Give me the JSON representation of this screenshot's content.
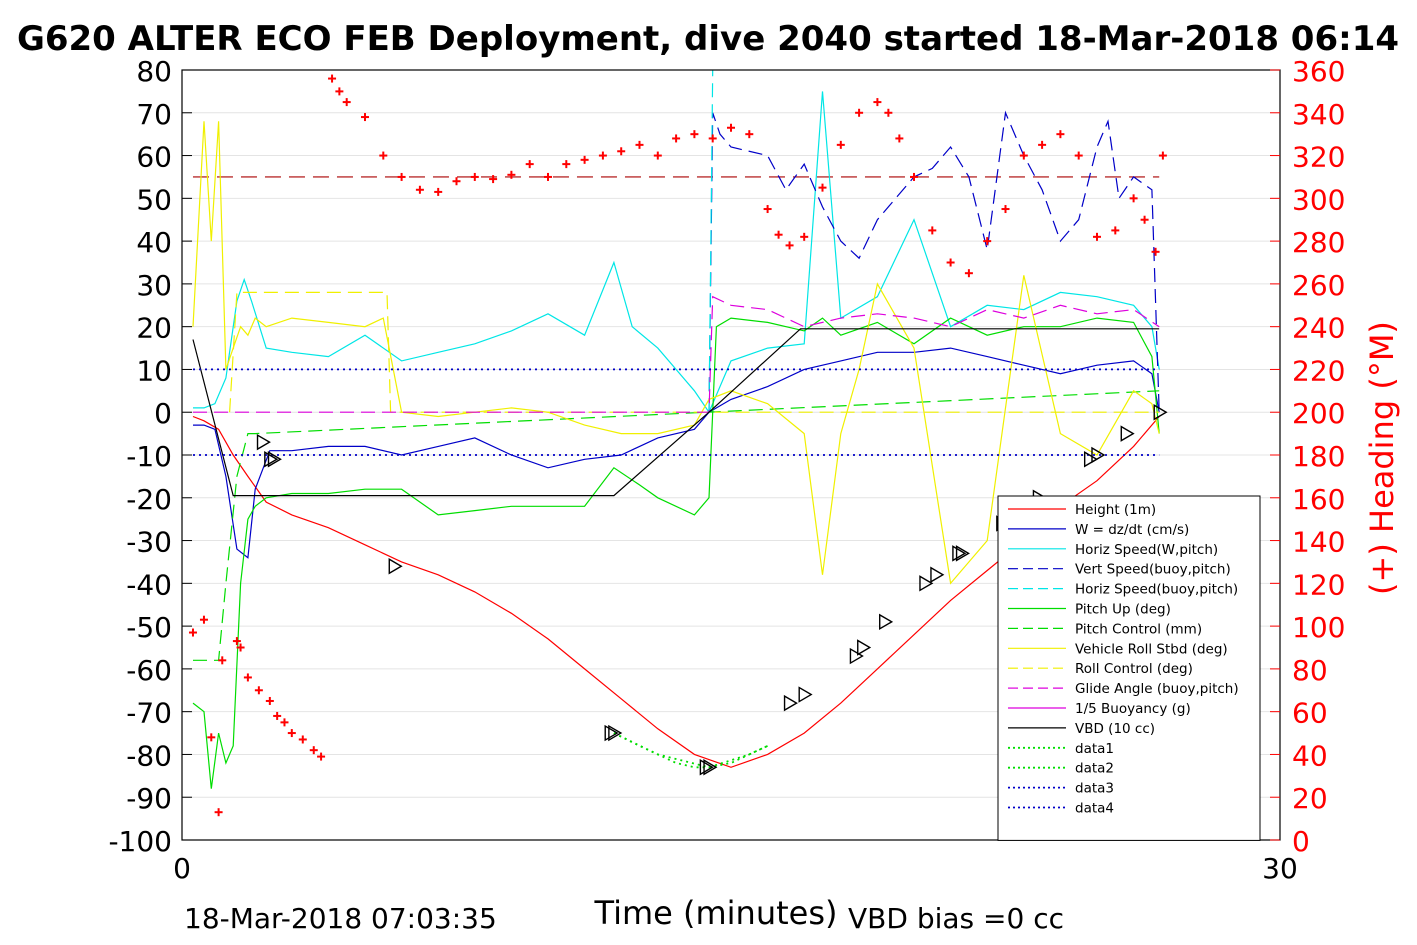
{
  "chart_data": {
    "type": "line",
    "title": "G620 ALTER ECO FEB Deployment, dive 2040 started 18-Mar-2018 06:14",
    "xlabel": "Time (minutes)",
    "ylabel_right": "(+) Heading (°M)",
    "xlim": [
      0,
      30
    ],
    "ylim": [
      -100,
      80
    ],
    "ylim_right": [
      0,
      360
    ],
    "x_ticks": [
      "0",
      "30"
    ],
    "y_ticks": [
      "-100",
      "-90",
      "-80",
      "-70",
      "-60",
      "-50",
      "-40",
      "-30",
      "-20",
      "-10",
      "0",
      "10",
      "20",
      "30",
      "40",
      "50",
      "60",
      "70",
      "80"
    ],
    "y_ticks_right": [
      "0",
      "20",
      "40",
      "60",
      "80",
      "100",
      "120",
      "140",
      "160",
      "180",
      "200",
      "220",
      "240",
      "260",
      "280",
      "300",
      "320",
      "340",
      "360"
    ],
    "grid": "horizontal",
    "legend_position": "bottom-right",
    "footer_left": "18-Mar-2018 07:03:35",
    "footer_right": "VBD bias =0 cc",
    "colors": {
      "height": "#ff0000",
      "w": "#0000c8",
      "horiz_speed": "#00e6e6",
      "pitch": "#00dd00",
      "roll": "#f0f000",
      "glide": "#dd00dd",
      "vbd": "#000000",
      "heading": "#ff0000"
    },
    "series": [
      {
        "name": "Height (1m)",
        "style": "solid",
        "color": "#ff0000",
        "x": [
          0.3,
          0.6,
          1.0,
          1.4,
          1.8,
          2.3,
          3,
          4,
          5,
          6,
          7,
          8,
          9,
          10,
          11,
          12,
          13,
          14,
          15,
          16,
          17,
          18,
          19,
          20,
          21,
          22,
          23,
          24,
          25,
          26,
          26.7
        ],
        "y": [
          -1,
          -2,
          -4,
          -10,
          -15,
          -21,
          -24,
          -27,
          -31,
          -35,
          -38,
          -42,
          -47,
          -53,
          -60,
          -67,
          -74,
          -80,
          -83,
          -80,
          -75,
          -68,
          -60,
          -52,
          -44,
          -37,
          -30,
          -22,
          -16,
          -8,
          -1
        ]
      },
      {
        "name": "W = dz/dt (cm/s)",
        "style": "solid",
        "color": "#0000c8",
        "x": [
          0.3,
          0.6,
          0.9,
          1.2,
          1.5,
          1.8,
          2.0,
          2.4,
          3,
          4,
          5,
          6,
          7,
          8,
          9,
          10,
          11,
          12,
          13,
          14,
          14.4,
          15,
          16,
          17,
          18,
          19,
          20,
          21,
          22,
          23,
          24,
          25,
          26,
          26.5,
          26.7
        ],
        "y": [
          -3,
          -3,
          -4,
          -15,
          -32,
          -34,
          -18,
          -9,
          -9,
          -8,
          -8,
          -10,
          -8,
          -6,
          -10,
          -13,
          -11,
          -10,
          -6,
          -4,
          0,
          3,
          6,
          10,
          12,
          14,
          14,
          15,
          13,
          11,
          9,
          11,
          12,
          9,
          0
        ]
      },
      {
        "name": "Horiz Speed(W,pitch)",
        "style": "solid",
        "color": "#00e6e6",
        "x": [
          0.3,
          0.6,
          0.9,
          1.2,
          1.5,
          1.7,
          1.9,
          2.3,
          3,
          4,
          5,
          6,
          7,
          8,
          9,
          10,
          11,
          11.8,
          12.3,
          13,
          14,
          14.4,
          15,
          16,
          17,
          17.5,
          18,
          19,
          20,
          21,
          22,
          23,
          24,
          25,
          26,
          26.5,
          26.7
        ],
        "y": [
          1,
          1,
          2,
          8,
          26,
          31,
          26,
          15,
          14,
          13,
          18,
          12,
          14,
          16,
          19,
          23,
          18,
          35,
          20,
          15,
          5,
          0,
          12,
          15,
          16,
          75,
          22,
          27,
          45,
          20,
          25,
          24,
          28,
          27,
          25,
          20,
          10
        ]
      },
      {
        "name": "Vert Speed(buoy,pitch)",
        "style": "dashed",
        "color": "#0000c8",
        "x": [
          14.4,
          14.5,
          14.7,
          15,
          16,
          16.5,
          17,
          17.5,
          18,
          18.5,
          19,
          19.5,
          20,
          20.5,
          21,
          21.5,
          22,
          22.5,
          23,
          23.5,
          24,
          24.5,
          25,
          25.3,
          25.6,
          26,
          26.5,
          26.7
        ],
        "y": [
          0,
          70,
          65,
          62,
          60,
          52,
          58,
          48,
          40,
          36,
          45,
          50,
          55,
          57,
          62,
          55,
          38,
          70,
          60,
          52,
          40,
          45,
          62,
          68,
          50,
          55,
          52,
          0
        ]
      },
      {
        "name": "Horiz Speed(buoy,pitch)",
        "style": "dashed",
        "color": "#00e6e6",
        "x": [
          14.4,
          14.5
        ],
        "y": [
          0,
          80
        ]
      },
      {
        "name": "Pitch Up (deg)",
        "style": "solid",
        "color": "#00dd00",
        "x": [
          0.3,
          0.6,
          0.8,
          1.0,
          1.2,
          1.4,
          1.6,
          1.8,
          2.0,
          2.3,
          3,
          4,
          5,
          6,
          7,
          8,
          9,
          10,
          11,
          11.8,
          12.5,
          13,
          14,
          14.4,
          14.6,
          15,
          16,
          17,
          17.5,
          18,
          19,
          20,
          21,
          22,
          23,
          24,
          25,
          26,
          26.5,
          26.7
        ],
        "y": [
          -68,
          -70,
          -88,
          -75,
          -82,
          -78,
          -40,
          -25,
          -22,
          -20,
          -19,
          -19,
          -18,
          -18,
          -24,
          -23,
          -22,
          -22,
          -22,
          -13,
          -17,
          -20,
          -24,
          -20,
          20,
          22,
          21,
          19,
          22,
          18,
          21,
          16,
          22,
          18,
          20,
          20,
          22,
          21,
          13,
          -5
        ]
      },
      {
        "name": "Pitch Control (mm)",
        "style": "dashed",
        "color": "#00dd00",
        "x": [
          0.3,
          1.0,
          1.2,
          1.5,
          1.8,
          2.0,
          26.7
        ],
        "y": [
          -58,
          -58,
          -40,
          -15,
          -5,
          -5,
          5
        ]
      },
      {
        "name": "Vehicle Roll Stbd (deg)",
        "style": "solid",
        "color": "#f0f000",
        "x": [
          0.3,
          0.6,
          0.8,
          1.0,
          1.2,
          1.4,
          1.6,
          1.8,
          2.0,
          2.3,
          3,
          4,
          5,
          5.5,
          6,
          7,
          8,
          9,
          10,
          11,
          12,
          13,
          14,
          14.4,
          15,
          16,
          17,
          17.5,
          18,
          18.5,
          19,
          20,
          21,
          22,
          23,
          24,
          25,
          26,
          26.5,
          26.7
        ],
        "y": [
          20,
          68,
          40,
          68,
          10,
          15,
          20,
          18,
          22,
          20,
          22,
          21,
          20,
          22,
          0,
          -1,
          0,
          1,
          0,
          -3,
          -5,
          -5,
          -3,
          3,
          5,
          2,
          -5,
          -38,
          -5,
          10,
          30,
          15,
          -40,
          -30,
          32,
          -5,
          -10,
          5,
          2,
          -5
        ]
      },
      {
        "name": "Roll Control (deg)",
        "style": "dashed",
        "color": "#f0f000",
        "x": [
          1.3,
          1.5,
          5.6,
          5.7,
          26.7
        ],
        "y": [
          0,
          28,
          28,
          0,
          0
        ]
      },
      {
        "name": "Glide Angle (buoy,pitch)",
        "style": "dashed",
        "color": "#dd00dd",
        "x": [
          0.3,
          14.4,
          14.5,
          15,
          16,
          17,
          18,
          19,
          20,
          21,
          22,
          23,
          24,
          25,
          26,
          26.7
        ],
        "y": [
          0,
          0,
          27,
          25,
          24,
          20,
          22,
          23,
          22,
          20,
          24,
          22,
          25,
          23,
          24,
          20
        ]
      },
      {
        "name": "1/5 Buoyancy (g)",
        "style": "solid",
        "color": "#dd00dd",
        "x": [],
        "y": []
      },
      {
        "name": "VBD (10 cc)",
        "style": "solid",
        "color": "#000000",
        "x": [
          0.3,
          1.4,
          11.8,
          14.4,
          16.9,
          26.7
        ],
        "y": [
          17,
          -19.5,
          -19.5,
          0,
          19.5,
          19.5
        ]
      },
      {
        "name": "data1",
        "style": "dotted",
        "color": "#00dd00",
        "x": [
          11.8,
          12.5,
          13,
          13.5,
          14,
          14.4,
          15,
          15.5,
          16
        ],
        "y": [
          -75,
          -78,
          -80,
          -82,
          -83,
          -83,
          -82,
          -80,
          -78
        ]
      },
      {
        "name": "data2",
        "style": "dotted",
        "color": "#00dd00",
        "x": [
          11.8,
          13,
          14.4,
          15.5,
          16
        ],
        "y": [
          -75,
          -80,
          -83,
          -80,
          -78
        ]
      },
      {
        "name": "data3",
        "style": "dotted",
        "color": "#0000c8",
        "x": [
          0.3,
          26.7
        ],
        "y": [
          10,
          10
        ]
      },
      {
        "name": "data4",
        "style": "dotted",
        "color": "#0000c8",
        "x": [
          0.3,
          26.7
        ],
        "y": [
          -10,
          -10
        ]
      }
    ],
    "reference_lines": [
      {
        "y": 55,
        "style": "dashed",
        "color": "#aa0000"
      }
    ],
    "heading_points": {
      "name": "(+) Heading (°M)",
      "x": [
        0.3,
        0.6,
        0.8,
        1.0,
        1.1,
        1.5,
        1.6,
        1.8,
        2.1,
        2.4,
        2.6,
        2.8,
        3.0,
        3.3,
        3.6,
        3.8,
        4.1,
        4.3,
        4.5,
        5.0,
        5.5,
        6.0,
        6.5,
        7.0,
        7.5,
        8.0,
        8.5,
        9.0,
        9.5,
        10.0,
        10.5,
        11.0,
        11.5,
        12.0,
        12.5,
        13.0,
        13.5,
        14.0,
        14.5,
        15.0,
        15.5,
        16.0,
        16.3,
        16.6,
        17.0,
        17.5,
        18.0,
        18.5,
        19.0,
        19.3,
        19.6,
        20.0,
        20.5,
        21.0,
        21.5,
        22.0,
        22.5,
        23.0,
        23.5,
        24.0,
        24.5,
        25.0,
        25.5,
        26.0,
        26.3,
        26.6,
        26.8
      ],
      "y": [
        97,
        103,
        48,
        13,
        84,
        93,
        90,
        76,
        70,
        65,
        58,
        55,
        50,
        47,
        42,
        39,
        356,
        350,
        345,
        338,
        320,
        310,
        304,
        303,
        308,
        310,
        309,
        311,
        316,
        310,
        316,
        318,
        320,
        322,
        325,
        320,
        328,
        330,
        328,
        333,
        330,
        295,
        283,
        278,
        282,
        305,
        325,
        340,
        345,
        340,
        328,
        310,
        285,
        270,
        265,
        280,
        295,
        320,
        325,
        330,
        320,
        282,
        285,
        300,
        290,
        275,
        320
      ]
    },
    "markers_x": [
      2.2,
      2.4,
      2.5,
      5.8,
      11.7,
      11.8,
      14.3,
      14.4,
      16.6,
      17.0,
      18.4,
      18.6,
      19.2,
      20.3,
      20.6,
      21.2,
      21.3,
      22.4,
      23.4,
      24.8,
      25.0,
      25.8,
      26.7
    ],
    "markers_y": [
      -7,
      -11,
      -11,
      -36,
      -75,
      -75,
      -83,
      -83,
      -68,
      -66,
      -57,
      -55,
      -49,
      -40,
      -38,
      -33,
      -33,
      -26,
      -20,
      -11,
      -10,
      -5,
      0
    ]
  }
}
